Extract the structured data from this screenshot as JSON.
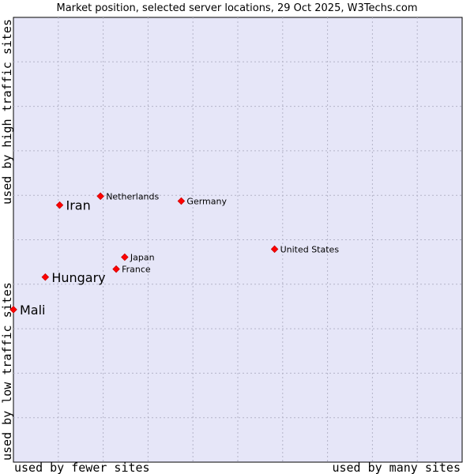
{
  "chart_data": {
    "type": "scatter",
    "title": "Market position, selected server locations, 29 Oct 2025, W3Techs.com",
    "xlabel_low": "used by fewer sites",
    "xlabel_high": "used by many sites",
    "ylabel_low": "used by low traffic sites",
    "ylabel_high": "used by high traffic sites",
    "xlim": [
      0,
      100
    ],
    "ylim": [
      0,
      100
    ],
    "grid": true,
    "points": [
      {
        "name": "Netherlands",
        "x": 19.4,
        "y": 59.8,
        "emphasis": false
      },
      {
        "name": "Iran",
        "x": 10.3,
        "y": 57.8,
        "emphasis": true
      },
      {
        "name": "Germany",
        "x": 37.4,
        "y": 58.7,
        "emphasis": false
      },
      {
        "name": "United States",
        "x": 58.2,
        "y": 47.9,
        "emphasis": false
      },
      {
        "name": "Japan",
        "x": 24.8,
        "y": 46.1,
        "emphasis": false
      },
      {
        "name": "France",
        "x": 22.9,
        "y": 43.4,
        "emphasis": false
      },
      {
        "name": "Hungary",
        "x": 7.1,
        "y": 41.6,
        "emphasis": true
      },
      {
        "name": "Mali",
        "x": 0.0,
        "y": 34.3,
        "emphasis": true
      }
    ]
  },
  "colors": {
    "plot_background": "#e6e6f8",
    "grid": "#b4b4c8",
    "marker": "#ff0000",
    "marker_edge": "#cc0000"
  }
}
